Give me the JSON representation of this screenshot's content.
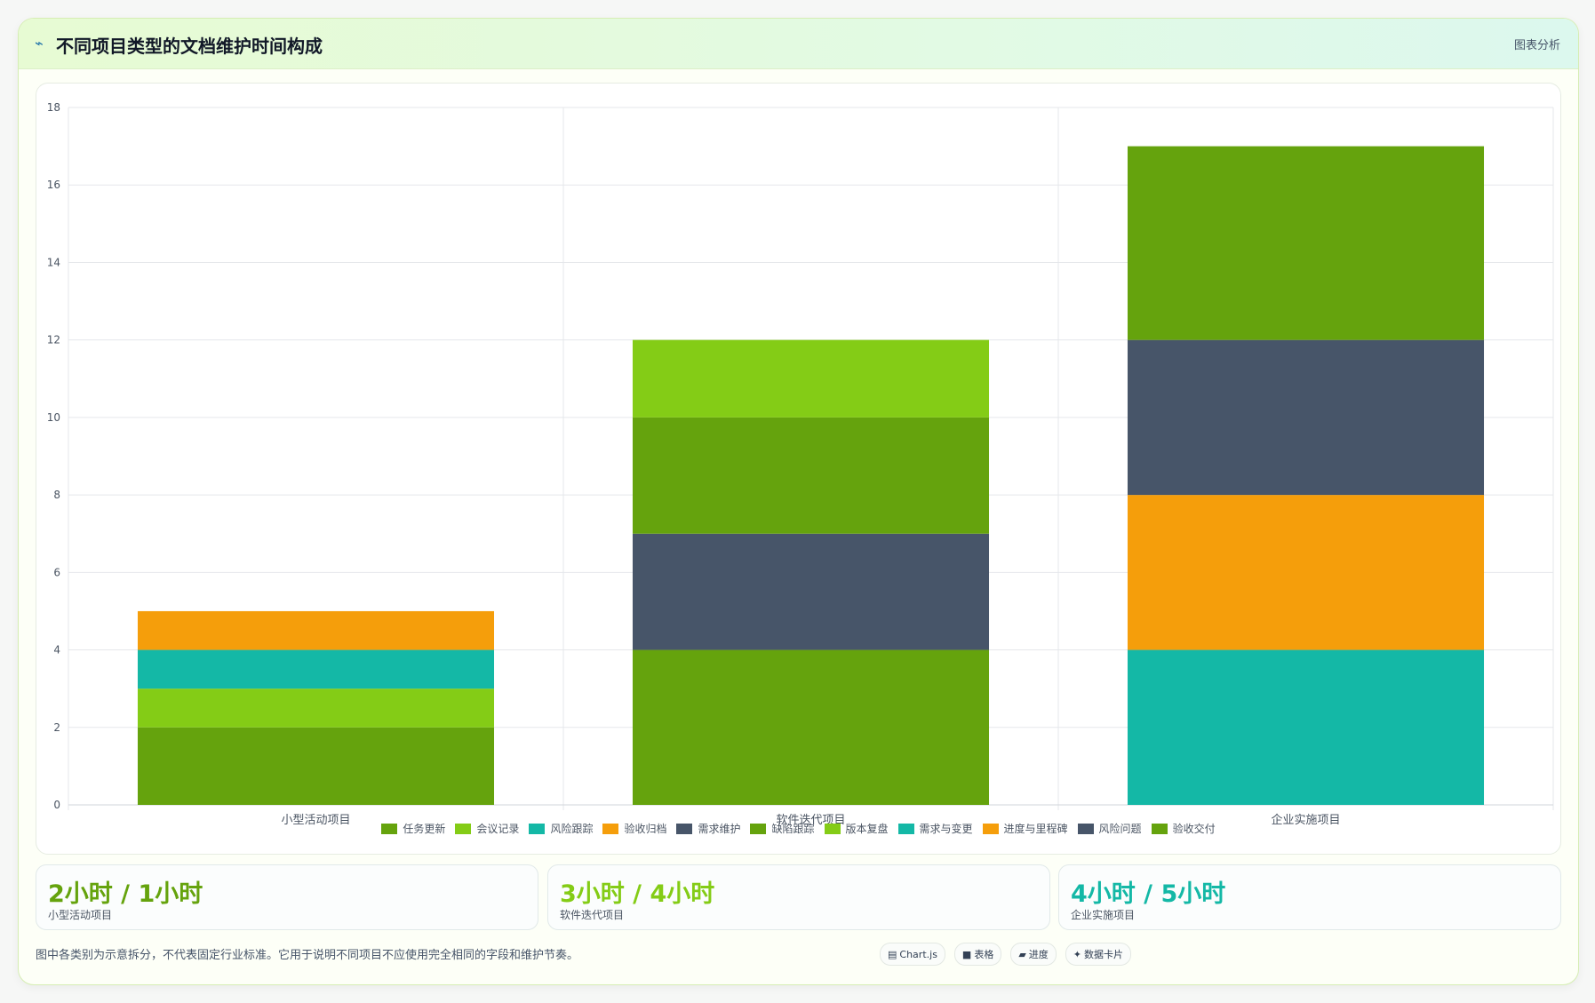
{
  "header": {
    "title": "不同项目类型的文档维护时间构成",
    "analysis_link": "图表分析",
    "icon": "chart-icon"
  },
  "chart_data": {
    "type": "bar",
    "stacked": true,
    "categories": [
      "小型活动项目",
      "软件迭代项目",
      "企业实施项目"
    ],
    "ylim": [
      0,
      18
    ],
    "yticks": [
      0,
      2,
      4,
      6,
      8,
      10,
      12,
      14,
      16,
      18
    ],
    "grid": true,
    "legend_position": "bottom",
    "series": [
      {
        "name": "任务更新",
        "color": "#65a30d",
        "values": [
          2,
          0,
          0
        ]
      },
      {
        "name": "会议记录",
        "color": "#84cc16",
        "values": [
          1,
          0,
          0
        ]
      },
      {
        "name": "风险跟踪",
        "color": "#14b8a6",
        "values": [
          1,
          0,
          0
        ]
      },
      {
        "name": "验收归档",
        "color": "#f59e0b",
        "values": [
          1,
          0,
          0
        ]
      },
      {
        "name": "需求维护",
        "color": "#475569",
        "values": [
          0,
          0,
          0
        ]
      },
      {
        "name": "缺陷跟踪",
        "color": "#65a30d",
        "values": [
          0,
          4,
          0
        ]
      },
      {
        "name": "版本复盘",
        "color": "#84cc16",
        "values": [
          0,
          0,
          0
        ]
      },
      {
        "name": "需求与变更",
        "color": "#14b8a6",
        "values": [
          0,
          0,
          4
        ]
      },
      {
        "name": "进度与里程碑",
        "color": "#f59e0b",
        "values": [
          0,
          0,
          4
        ]
      },
      {
        "name": "风险问题",
        "color": "#475569",
        "values": [
          0,
          3,
          4
        ]
      },
      {
        "name": "验收交付",
        "color": "#65a30d",
        "values": [
          0,
          3,
          5
        ]
      }
    ],
    "top_segments": {
      "color": "#84cc16",
      "values": [
        0,
        2,
        0
      ]
    }
  },
  "stats": [
    {
      "value": "2小时 / 1小时",
      "label": "小型活动项目",
      "color": "#65a30d"
    },
    {
      "value": "3小时 / 4小时",
      "label": "软件迭代项目",
      "color": "#84cc16"
    },
    {
      "value": "4小时 / 5小时",
      "label": "企业实施项目",
      "color": "#14b8a6"
    }
  ],
  "footnote": "图中各类别为示意拆分，不代表固定行业标准。它用于说明不同项目不应使用完全相同的字段和维护节奏。",
  "chips": [
    {
      "icon": "▤",
      "label": "Chart.js"
    },
    {
      "icon": "■",
      "label": "表格"
    },
    {
      "icon": "▰",
      "label": "进度"
    },
    {
      "icon": "✦",
      "label": "数据卡片"
    }
  ]
}
